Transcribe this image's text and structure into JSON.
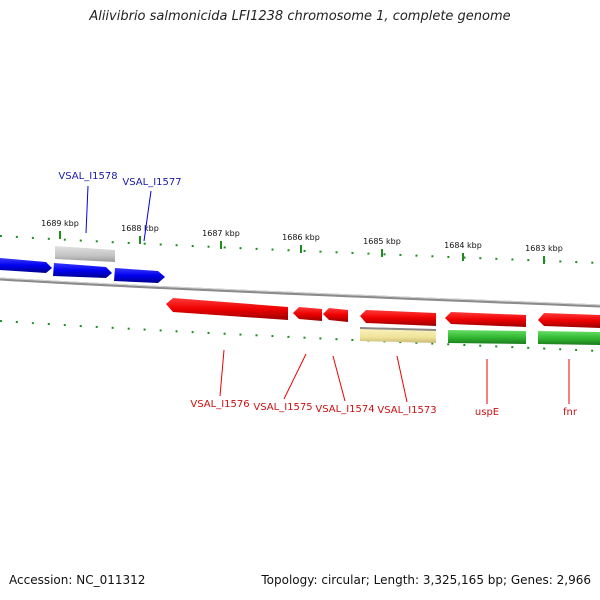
{
  "title": "Aliivibrio salmonicida LFI1238 chromosome 1, complete genome",
  "accession": "Accession: NC_011312",
  "summary": "Topology: circular; Length: 3,325,165 bp; Genes: 2,966",
  "colors": {
    "forward_gene": "#0000ee",
    "reverse_gene": "#ee0000",
    "forward_label": "#1a1aa8",
    "reverse_label": "#cc1111",
    "tick": "#1e8c1e",
    "backbone": "#888888",
    "gray_feature": "#c8c8c8",
    "tan_feature": "#f2e6a0",
    "green_feature": "#33bb33"
  },
  "ticks": [
    {
      "label": "1689 kbp"
    },
    {
      "label": "1688 kbp"
    },
    {
      "label": "1687 kbp"
    },
    {
      "label": "1686 kbp"
    },
    {
      "label": "1685 kbp"
    },
    {
      "label": "1684 kbp"
    },
    {
      "label": "1683 kbp"
    }
  ],
  "forward_labels": [
    {
      "name": "VSAL_I1578"
    },
    {
      "name": "VSAL_I1577"
    }
  ],
  "reverse_labels": [
    {
      "name": "VSAL_I1576"
    },
    {
      "name": "VSAL_I1575"
    },
    {
      "name": "VSAL_I1574"
    },
    {
      "name": "VSAL_I1573"
    },
    {
      "name": "uspE"
    },
    {
      "name": "fnr"
    }
  ]
}
